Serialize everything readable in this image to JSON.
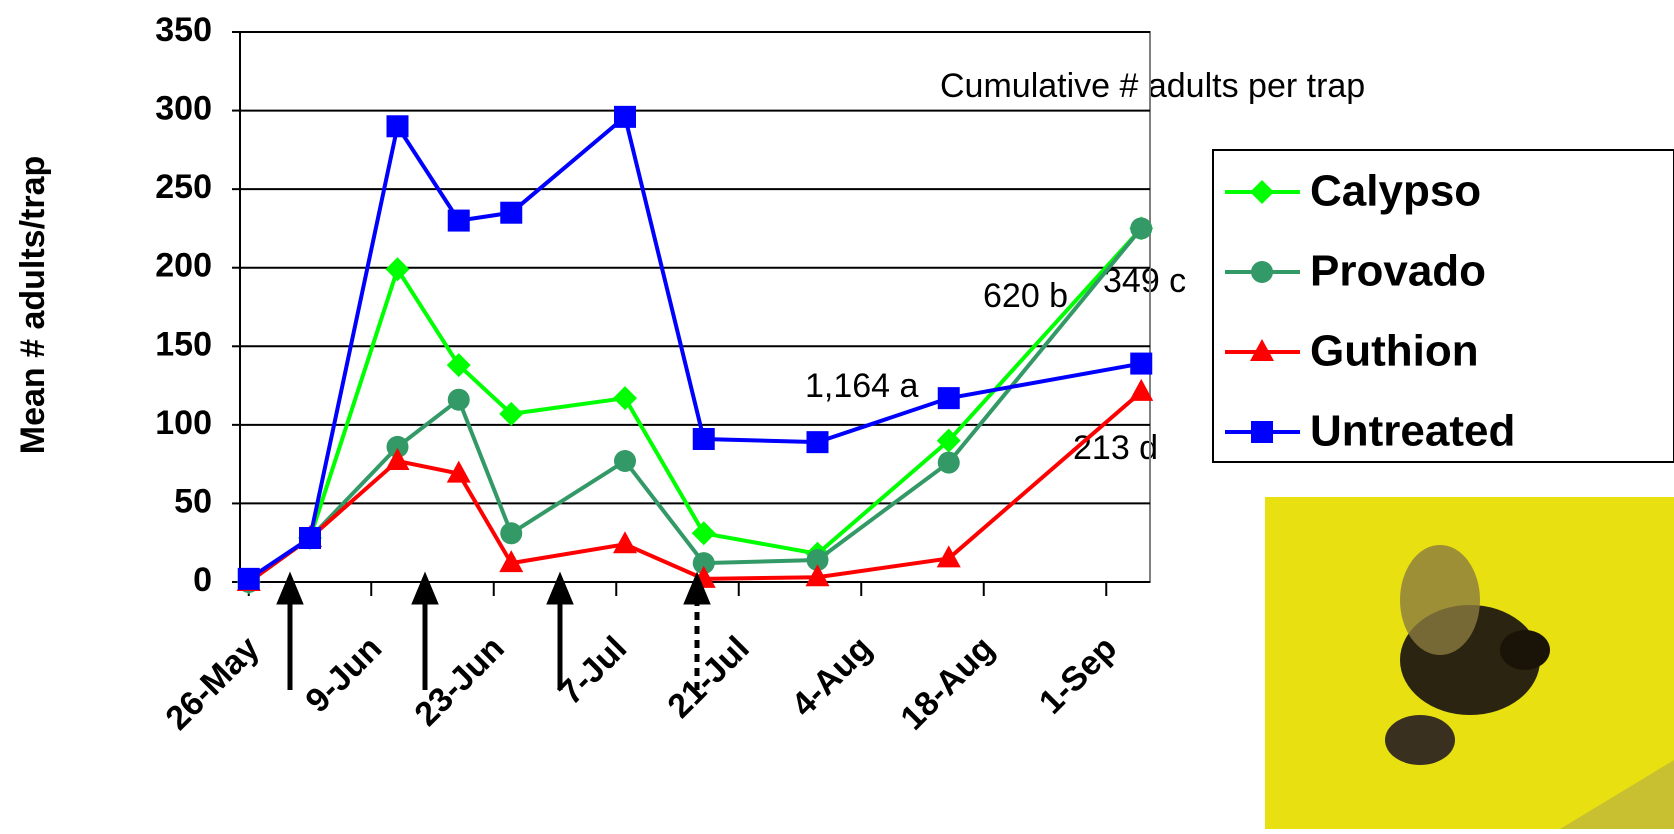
{
  "chart_data": {
    "type": "line",
    "y_label": "Mean # adults/trap",
    "x": [
      "26-May",
      "2-Jun",
      "12-Jun",
      "19-Jun",
      "25-Jun",
      "8-Jul",
      "17-Jul",
      "30-Jul",
      "14-Aug",
      "5-Sep"
    ],
    "series": [
      {
        "name": "Calypso",
        "color": "#00ff00",
        "marker": "diamond",
        "values": [
          0,
          28,
          199,
          138,
          107,
          117,
          31,
          18,
          90,
          225
        ]
      },
      {
        "name": "Provado",
        "color": "#339966",
        "marker": "circle",
        "values": [
          0,
          28,
          86,
          116,
          31,
          77,
          12,
          14,
          76,
          225
        ]
      },
      {
        "name": "Guthion",
        "color": "#ff0000",
        "marker": "triangle",
        "values": [
          0,
          28,
          77,
          69,
          12,
          24,
          2,
          3,
          15,
          121
        ]
      },
      {
        "name": "Untreated",
        "color": "#0000ff",
        "marker": "square",
        "values": [
          2,
          28,
          290,
          230,
          235,
          296,
          91,
          89,
          117,
          139
        ]
      }
    ],
    "xlim": [
      "25-May",
      "6-Sep"
    ],
    "xticks": [
      "26-May",
      "9-Jun",
      "23-Jun",
      "7-Jul",
      "21-Jul",
      "4-Aug",
      "18-Aug",
      "1-Sep"
    ],
    "ylim": [
      0,
      350
    ],
    "yticks": [
      0,
      50,
      100,
      150,
      200,
      250,
      300,
      350
    ],
    "grid": true,
    "legend": "right",
    "annotations": [
      "Cumulative # adults per trap",
      "620 b",
      "349 c",
      "1,164 a",
      "213 d"
    ]
  }
}
